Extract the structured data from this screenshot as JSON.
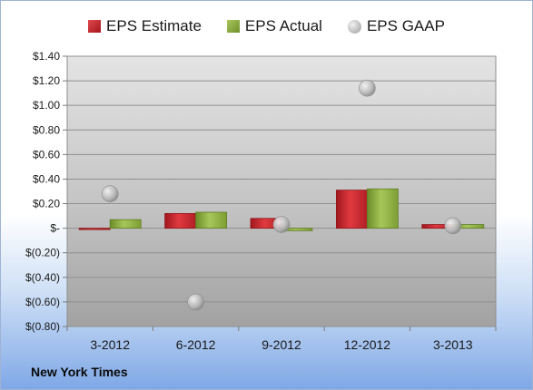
{
  "chart_data": {
    "type": "bar",
    "categories": [
      "3-2012",
      "6-2012",
      "9-2012",
      "12-2012",
      "3-2013"
    ],
    "series": [
      {
        "name": "EPS Estimate",
        "kind": "bar",
        "color": "#c0262c",
        "values": [
          -0.01,
          0.12,
          0.08,
          0.31,
          0.03
        ]
      },
      {
        "name": "EPS Actual",
        "kind": "bar",
        "color": "#8aad3e",
        "values": [
          0.07,
          0.13,
          -0.02,
          0.32,
          0.03
        ]
      },
      {
        "name": "EPS GAAP",
        "kind": "scatter",
        "color": "#a6a6a6",
        "values": [
          0.28,
          -0.6,
          0.03,
          1.14,
          0.02
        ]
      }
    ],
    "yticks": [
      "$1.40",
      "$1.20",
      "$1.00",
      "$0.80",
      "$0.60",
      "$0.40",
      "$0.20",
      "$-",
      "$(0.20)",
      "$(0.40)",
      "$(0.60)",
      "$(0.80)"
    ],
    "ylim": [
      -0.8,
      1.4
    ],
    "ystep": 0.2,
    "grid": true,
    "legend_position": "top",
    "caption": "New York Times"
  }
}
